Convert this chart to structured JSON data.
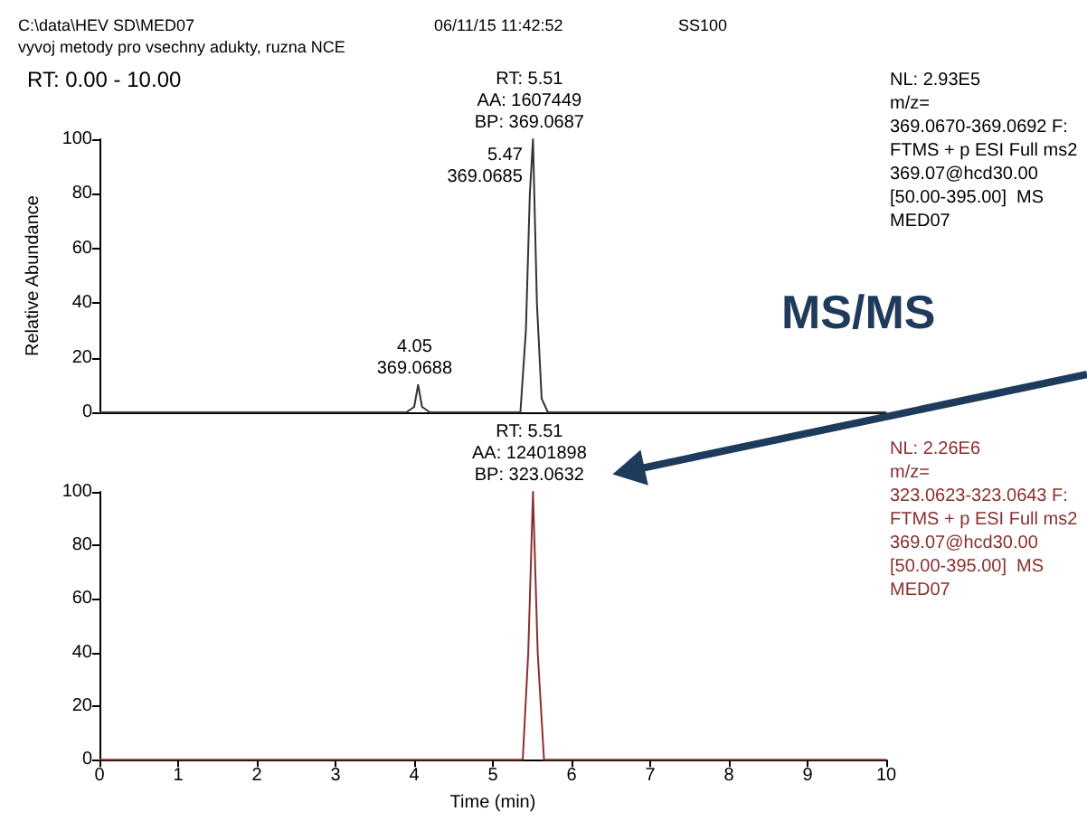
{
  "chart_data": [
    {
      "type": "line",
      "title": "RT: 0.00 - 10.00",
      "ylabel": "Relative Abundance",
      "x": [
        0,
        3.9,
        4.0,
        4.05,
        4.1,
        4.2,
        5.35,
        5.42,
        5.47,
        5.51,
        5.56,
        5.62,
        5.7,
        10
      ],
      "series": [
        {
          "color": "#333333",
          "values": [
            0,
            0,
            2,
            10,
            2,
            0,
            0,
            30,
            80,
            100,
            40,
            5,
            0,
            0
          ]
        }
      ],
      "xlim": [
        0,
        10
      ],
      "ylim": [
        0,
        100
      ],
      "yticks": [
        0,
        20,
        40,
        60,
        80,
        100
      ],
      "tick_labels": "y",
      "marker": "none",
      "line_style": "solid",
      "annotations": [
        "C:\\data\\HEV SD\\MED07",
        "vyvoj metody pro vsechny adukty, ruzna NCE",
        "06/11/15 11:42:52",
        "SS100",
        "NL: 2.93E5\nm/z=\n369.0670-369.0692 F:\nFTMS + p ESI Full ms2\n369.07@hcd30.00\n[50.00-395.00]  MS\nMED07",
        "MS/MS",
        {
          "text": "RT: 5.51\nAA: 1607449\nBP: 369.0687",
          "x": 5.51,
          "y": 100
        },
        {
          "text": "5.47\n369.0685",
          "x": 5.47,
          "y": 80
        },
        {
          "text": "4.05\n369.0688",
          "x": 4.05,
          "y": 10
        }
      ]
    },
    {
      "type": "line",
      "xlabel": "Time (min)",
      "x": [
        0,
        5.38,
        5.45,
        5.51,
        5.57,
        5.65,
        10
      ],
      "series": [
        {
          "color": "#8b2e2e",
          "values": [
            0,
            0,
            40,
            100,
            40,
            0,
            0
          ]
        }
      ],
      "xlim": [
        0,
        10
      ],
      "xticks": [
        0,
        1,
        2,
        3,
        4,
        5,
        6,
        7,
        8,
        9,
        10
      ],
      "ylim": [
        0,
        100
      ],
      "yticks": [
        0,
        20,
        40,
        60,
        80,
        100
      ],
      "marker": "none",
      "line_style": "solid",
      "annotations": [
        "NL: 2.26E6\nm/z=\n323.0623-323.0643 F:\nFTMS + p ESI Full ms2\n369.07@hcd30.00\n[50.00-395.00]  MS\nMED07",
        {
          "text": "RT: 5.51\nAA: 12401898\nBP: 323.0632",
          "x": 5.51,
          "y": 100
        }
      ]
    }
  ]
}
